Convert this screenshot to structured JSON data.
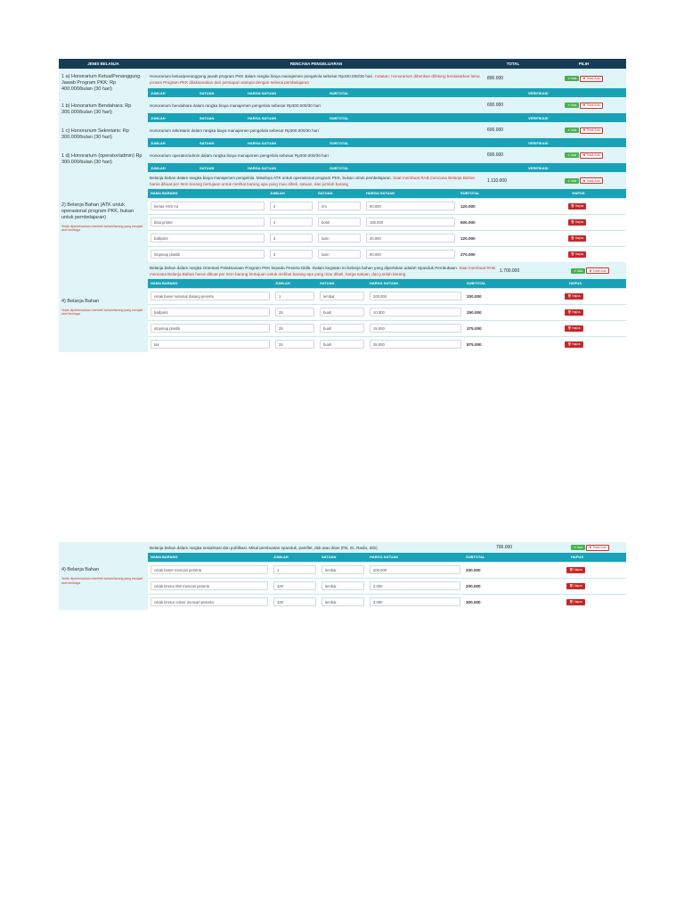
{
  "header": {
    "jenis": "JENIS BELANJA",
    "rencana": "RENCANA PENGELUARAN",
    "total": "TOTAL",
    "pilih": "PILIH"
  },
  "buttons": {
    "ada": "✔ Ada",
    "tidak_ada": "✖ Tidak Ada",
    "hapus": "🗑 Hapus"
  },
  "sub_headers": {
    "jumlah": "JUMLAH",
    "satuan": "SATUAN",
    "harga": "HARGA SATUAN",
    "subtotal": "SUBTOTAL",
    "verifikasi": "VERIFIKASI",
    "nama": "NAMA BARANG",
    "hapus": "HAPUS"
  },
  "honor": [
    {
      "label": "1 a) Honorarium Ketua/Penanggung Jawab Program PKK: Rp 400.000/bulan (30 hari)",
      "desc": "Honorarium ketua/penanggung jawab program PKK dalam rangka biaya manajemen pengelola sebesar Rp400.000/30 hari.",
      "red": "Catatan: Honorarium diberikan dihitung berdasarkan lama proses Program PKK dilaksanakan dari persiapan sampai dengan selesai pembelajaran",
      "total": "800.000"
    },
    {
      "label": "1 b) Honorarium Bendahara: Rp 300.000/bulan (30 hari)",
      "desc": "Honorarium bendahara dalam rangka biaya manajemen pengelola sebesar Rp300.000/30 hari",
      "red": "",
      "total": "600.000"
    },
    {
      "label": "1 c) Honorarium Sekretaris: Rp 300.000/bulan (30 hari)",
      "desc": "Honorarium sekretaris dalam rangka biaya manajemen pengelola sebesar Rp300.000/30 hari",
      "red": "",
      "total": "600.000"
    },
    {
      "label": "1 d) Honorarium (operator/admin) Rp 300.000/bulan (30 hari)",
      "desc": "Honorarium operator/admin dalam rangka biaya manajemen pengelola sebesar Rp300.000/30 hari",
      "red": "",
      "total": "600.000"
    }
  ],
  "bahan1": {
    "label": "2) Belanja Bahan (ATK untuk operasional program PKK, bukan untuk pembelajaran)",
    "note": "*tidak diperkenankan membeli bahan/barang yang menjadi aset lembaga",
    "desc": "Belanja bahan dalam rangka biaya manajemen pengelola. Misalnya ATK untuk operasional program PKK, bukan untuk pembelajaran.",
    "red": "Saat membuat RAB mencana Belanja Bahan harus dibuat per Item barang bertujuan untuk melihat barang apa yang mau dibeli, satuan, dan jumlah barang",
    "total": "1.110.000",
    "items": [
      {
        "nama": "kertas HVS A4",
        "jumlah": "2",
        "satuan": "rim",
        "harga": "60.000",
        "subtotal": "120.000"
      },
      {
        "nama": "tinta printer",
        "jumlah": "4",
        "satuan": "botol",
        "harga": "150.000",
        "subtotal": "600.000"
      },
      {
        "nama": "ballpoint",
        "jumlah": "3",
        "satuan": "lusin",
        "harga": "40.000",
        "subtotal": "120.000"
      },
      {
        "nama": "stopmap plastik",
        "jumlah": "3",
        "satuan": "lusin",
        "harga": "90.000",
        "subtotal": "270.000"
      }
    ]
  },
  "bahan2": {
    "label": "4) Belanja Bahan",
    "note": "*tidak diperkenankan membeli bahan/barang yang menjadi aset lembaga",
    "desc": "Belanja bahan dalam rangka Orientasi Pelaksanaan Program PKK kepada Peserta Didik. Dalam kegiatan ini belanja bahan yang diperlukan adalah Spanduk Pembukaan.",
    "red": "Saat membuat RAB mencana Belanja Bahan harus dibuat per Item barang bertujuan untuk melihat barang apa yang mau dibeli, harga satuan, dan jumlah barang",
    "total": "1.700.000",
    "items": [
      {
        "nama": "cetak baner selamat datang peserta",
        "jumlah": "1",
        "satuan": "lembar",
        "harga": "200.000",
        "subtotal": "200.000"
      },
      {
        "nama": "ballpoint",
        "jumlah": "25",
        "satuan": "buah",
        "harga": "10.000",
        "subtotal": "250.000"
      },
      {
        "nama": "stopmap plastik",
        "jumlah": "25",
        "satuan": "buah",
        "harga": "15.000",
        "subtotal": "375.000"
      },
      {
        "nama": "tas",
        "jumlah": "25",
        "satuan": "buah",
        "harga": "35.000",
        "subtotal": "875.000"
      }
    ]
  },
  "bahan3": {
    "label": "4) Belanja Bahan",
    "note": "*tidak diperkenankan membeli bahan/barang yang menjadi aset lembaga",
    "desc": "Belanja bahan dalam rangka sosialisasi dan publikasi. Misal pembuatan spanduk, pamflet, dsb atau iklan (FB, IG, Radio, dsb)",
    "total": "700.000",
    "items": [
      {
        "nama": "cetak baner mencari peserta",
        "jumlah": "1",
        "satuan": "lembar",
        "harga": "200.000",
        "subtotal": "200.000"
      },
      {
        "nama": "cetak brosur BW mencari peserta",
        "jumlah": "100",
        "satuan": "lembar",
        "harga": "2.000",
        "subtotal": "200.000"
      },
      {
        "nama": "cetak brosur colour mencari peserta",
        "jumlah": "100",
        "satuan": "lembar",
        "harga": "3.000",
        "subtotal": "300.000"
      }
    ]
  }
}
